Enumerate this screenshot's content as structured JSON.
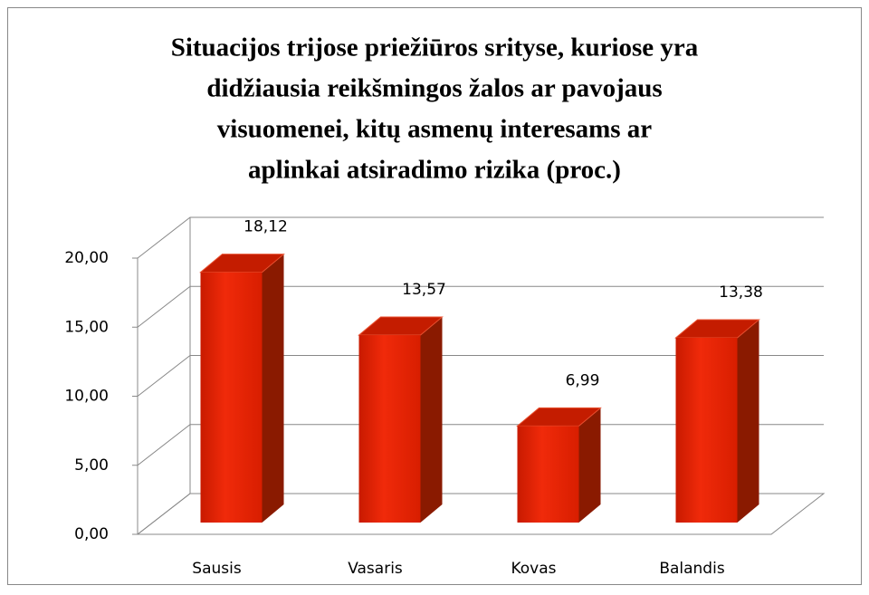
{
  "chart_data": {
    "type": "bar3d",
    "title": [
      "Situacijos trijose priežiūros  srityse, kuriose yra",
      "didžiausia  reikšmingos žalos ar pavojaus",
      "visuomenei, kitų asmenų interesams ar",
      "aplinkai atsiradimo rizika (proc.)"
    ],
    "categories": [
      "Sausis",
      "Vasaris",
      "Kovas",
      "Balandis"
    ],
    "values": [
      18.12,
      13.57,
      6.99,
      13.38
    ],
    "value_labels": [
      "18,12",
      "13,57",
      "6,99",
      "13,38"
    ],
    "color": "#e8220a",
    "ylim": [
      0,
      20
    ],
    "yticks": [
      {
        "value": 0,
        "label": "0,00"
      },
      {
        "value": 5,
        "label": "5,00"
      },
      {
        "value": 10,
        "label": "10,00"
      },
      {
        "value": 15,
        "label": "15,00"
      },
      {
        "value": 20,
        "label": "20,00"
      }
    ],
    "grid": true
  }
}
